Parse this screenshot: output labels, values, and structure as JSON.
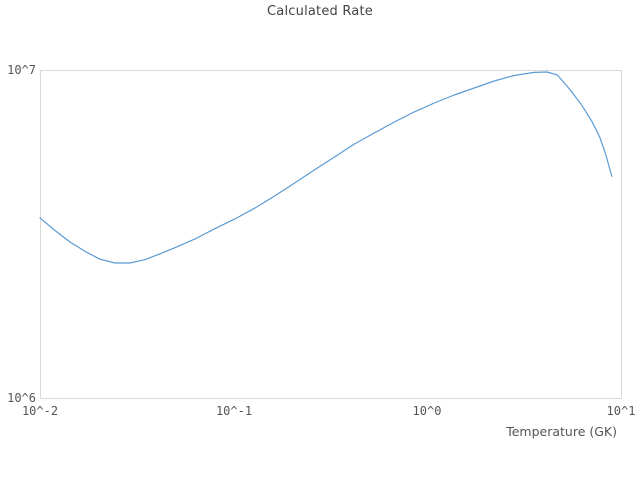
{
  "chart": {
    "title": "Calculated Rate",
    "frame_color": "#d9d9d9",
    "title_color": "#444444",
    "tick_color": "#555555"
  },
  "chart_data": {
    "type": "line",
    "title": "Calculated Rate",
    "xlabel": "Temperature (GK)",
    "ylabel": "",
    "x_scale": "log",
    "y_scale": "log",
    "xlim": [
      0.01,
      10
    ],
    "ylim": [
      1000000,
      10000000
    ],
    "grid": false,
    "legend": "none",
    "x_tick_labels": [
      "10^-2",
      "10^-1",
      "10^0",
      "10^1"
    ],
    "x_tick_values": [
      0.01,
      0.1,
      1,
      10
    ],
    "y_tick_labels": [
      "10^6",
      "10^7"
    ],
    "y_tick_values": [
      1000000,
      10000000
    ],
    "series": [
      {
        "name": "Calculated Rate",
        "color": "#5b9bd5",
        "x": [
          0.01,
          0.01195,
          0.01428,
          0.01706,
          0.02038,
          0.02435,
          0.02909,
          0.03475,
          0.04152,
          0.0496,
          0.0629,
          0.07976,
          0.1011,
          0.1282,
          0.1626,
          0.2062,
          0.2614,
          0.3315,
          0.4203,
          0.533,
          0.6758,
          0.8569,
          1.086,
          1.377,
          1.746,
          2.214,
          2.807,
          3.559,
          4.155,
          4.69,
          5.416,
          6.254,
          7.053,
          7.767,
          8.342,
          8.96
        ],
        "y": [
          3540000.0,
          3240000.0,
          2990000.0,
          2800000.0,
          2650000.0,
          2580000.0,
          2580000.0,
          2640000.0,
          2750000.0,
          2870000.0,
          3050000.0,
          3280000.0,
          3510000.0,
          3790000.0,
          4130000.0,
          4520000.0,
          4960000.0,
          5430000.0,
          5950000.0,
          6430000.0,
          6940000.0,
          7450000.0,
          7930000.0,
          8390000.0,
          8810000.0,
          9260000.0,
          9620000.0,
          9830000.0,
          9860000.0,
          9660000.0,
          8760000.0,
          7830000.0,
          7000000.0,
          6250000.0,
          5520000.0,
          4740000.0
        ]
      }
    ]
  }
}
